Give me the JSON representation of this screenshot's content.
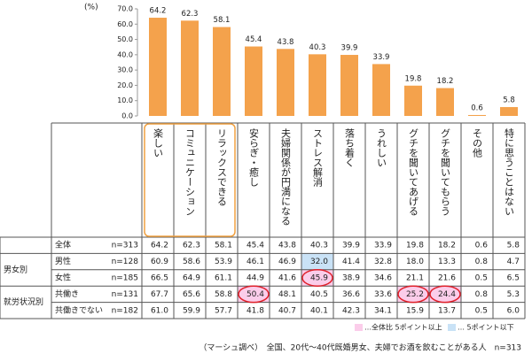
{
  "chart_data": {
    "type": "bar",
    "y_unit": "(%)",
    "categories": [
      "楽しい",
      "コミュニケーション",
      "リラックスできる",
      "安らぎ・癒し",
      "夫婦関係が円満になる",
      "ストレス解消",
      "落ち着く",
      "うれしい",
      "グチを聞いてあげる",
      "グチを聞いてもらう",
      "その他",
      "特に思うことはない"
    ],
    "values": [
      64.2,
      62.3,
      58.1,
      45.4,
      43.8,
      40.3,
      39.9,
      33.9,
      19.8,
      18.2,
      0.6,
      5.8
    ],
    "ylim": [
      0,
      70
    ],
    "yticks": [
      {
        "value": 0,
        "label": "0.0"
      },
      {
        "value": 10,
        "label": "10.0"
      },
      {
        "value": 20,
        "label": "20.0"
      },
      {
        "value": 30,
        "label": "30.0"
      },
      {
        "value": 40,
        "label": "40.0"
      },
      {
        "value": 50,
        "label": "50.0"
      },
      {
        "value": 60,
        "label": "60.0"
      },
      {
        "value": 70,
        "label": "70.0"
      }
    ],
    "color": "#f4a24c"
  },
  "table": {
    "rows": [
      {
        "label": "全体",
        "n": "n=313",
        "values": [
          "64.2",
          "62.3",
          "58.1",
          "45.4",
          "43.8",
          "40.3",
          "39.9",
          "33.9",
          "19.8",
          "18.2",
          "0.6",
          "5.8"
        ]
      },
      {
        "group": "男女別",
        "label": "男性",
        "n": "n=128",
        "values": [
          "60.9",
          "58.6",
          "53.9",
          "46.1",
          "46.9",
          "32.0",
          "41.4",
          "32.8",
          "18.0",
          "13.3",
          "0.8",
          "4.7"
        ]
      },
      {
        "label": "女性",
        "n": "n=185",
        "values": [
          "66.5",
          "64.9",
          "61.1",
          "44.9",
          "41.6",
          "45.9",
          "38.9",
          "34.6",
          "21.1",
          "21.6",
          "0.5",
          "6.5"
        ]
      },
      {
        "group": "就労状況別",
        "label": "共働き",
        "n": "n=131",
        "values": [
          "67.7",
          "65.6",
          "58.8",
          "50.4",
          "48.1",
          "40.5",
          "36.6",
          "33.6",
          "25.2",
          "24.4",
          "0.8",
          "5.3"
        ]
      },
      {
        "label": "共働きでない",
        "n": "n=182",
        "values": [
          "61.0",
          "59.9",
          "57.7",
          "41.8",
          "40.7",
          "40.1",
          "42.3",
          "34.1",
          "15.9",
          "13.7",
          "0.5",
          "6.0"
        ]
      }
    ],
    "plus_cells": [
      [
        2,
        5
      ],
      [
        3,
        3
      ],
      [
        3,
        8
      ],
      [
        3,
        9
      ]
    ],
    "minus_cells": [
      [
        1,
        5
      ]
    ],
    "plus_color": "#fbcdea",
    "minus_color": "#c9e2f6"
  },
  "legend": {
    "plus": "…全体比 5ポイント以上",
    "minus": "… 5ポイント以下"
  },
  "footer": "（マーシュ調べ）　全国、20代～40代既婚男女、夫婦でお酒を飲むことがある人　n=313"
}
